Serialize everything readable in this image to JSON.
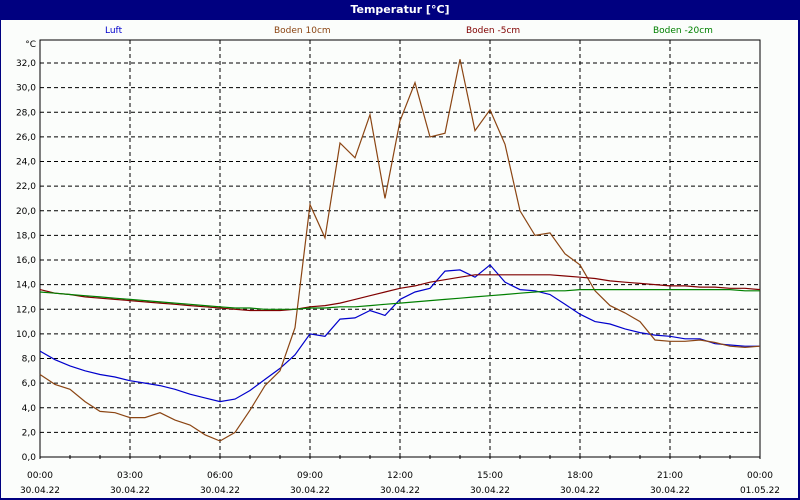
{
  "window": {
    "title": "Temperatur [°C]"
  },
  "chart_data": {
    "type": "line",
    "title": "Temperatur [°C]",
    "ylabel": "°C",
    "xlabel": "",
    "ylim": [
      0,
      33
    ],
    "grid": true,
    "legend_position": "top",
    "y_ticks": [
      "0,0",
      "2,0",
      "4,0",
      "6,0",
      "8,0",
      "10,0",
      "12,0",
      "14,0",
      "16,0",
      "18,0",
      "20,0",
      "22,0",
      "24,0",
      "26,0",
      "28,0",
      "30,0",
      "32,0"
    ],
    "x_ticks": [
      {
        "time": "00:00",
        "date": "30.04.22"
      },
      {
        "time": "03:00",
        "date": "30.04.22"
      },
      {
        "time": "06:00",
        "date": "30.04.22"
      },
      {
        "time": "09:00",
        "date": "30.04.22"
      },
      {
        "time": "12:00",
        "date": "30.04.22"
      },
      {
        "time": "15:00",
        "date": "30.04.22"
      },
      {
        "time": "18:00",
        "date": "30.04.22"
      },
      {
        "time": "21:00",
        "date": "30.04.22"
      },
      {
        "time": "00:00",
        "date": "01.05.22"
      }
    ],
    "x_hours": [
      0,
      0.5,
      1,
      1.5,
      2,
      2.5,
      3,
      3.5,
      4,
      4.5,
      5,
      5.5,
      6,
      6.5,
      7,
      7.5,
      8,
      8.5,
      9,
      9.5,
      10,
      10.5,
      11,
      11.5,
      12,
      12.5,
      13,
      13.5,
      14,
      14.5,
      15,
      15.5,
      16,
      16.5,
      17,
      17.5,
      18,
      18.5,
      19,
      19.5,
      20,
      20.5,
      21,
      21.5,
      22,
      22.5,
      23,
      23.5,
      24
    ],
    "series": [
      {
        "name": "Luft",
        "color": "#0000cc",
        "values": [
          8.6,
          7.9,
          7.4,
          7.0,
          6.7,
          6.5,
          6.2,
          6.0,
          5.8,
          5.5,
          5.1,
          4.8,
          4.5,
          4.7,
          5.4,
          6.3,
          7.2,
          8.3,
          10.0,
          9.8,
          11.2,
          11.3,
          11.9,
          11.5,
          12.8,
          13.4,
          13.7,
          15.1,
          15.2,
          14.6,
          15.6,
          14.2,
          13.6,
          13.5,
          13.2,
          12.4,
          11.6,
          11.0,
          10.8,
          10.4,
          10.1,
          9.9,
          9.8,
          9.6,
          9.6,
          9.2,
          9.1,
          9.0,
          9.0
        ]
      },
      {
        "name": "Boden 10cm",
        "color": "#8b4513",
        "values": [
          6.7,
          5.9,
          5.5,
          4.5,
          3.7,
          3.6,
          3.2,
          3.2,
          3.6,
          3.0,
          2.6,
          1.8,
          1.3,
          2.0,
          3.8,
          5.8,
          7.0,
          10.5,
          20.5,
          17.8,
          25.5,
          24.3,
          27.8,
          21.0,
          27.3,
          30.4,
          26.0,
          26.3,
          32.3,
          26.5,
          28.2,
          25.4,
          20.0,
          18.0,
          18.2,
          16.5,
          15.6,
          13.5,
          12.3,
          11.7,
          11.0,
          9.5,
          9.4,
          9.4,
          9.5,
          9.3,
          9.0,
          8.9,
          9.0
        ]
      },
      {
        "name": "Boden -5cm",
        "color": "#800000",
        "values": [
          13.6,
          13.3,
          13.2,
          13.0,
          12.9,
          12.8,
          12.7,
          12.6,
          12.5,
          12.4,
          12.3,
          12.2,
          12.1,
          12.0,
          11.9,
          11.9,
          11.9,
          12.0,
          12.2,
          12.3,
          12.5,
          12.8,
          13.1,
          13.4,
          13.7,
          13.9,
          14.2,
          14.4,
          14.6,
          14.8,
          14.8,
          14.8,
          14.8,
          14.8,
          14.8,
          14.7,
          14.6,
          14.5,
          14.3,
          14.2,
          14.1,
          14.0,
          13.9,
          13.9,
          13.8,
          13.8,
          13.7,
          13.7,
          13.6
        ]
      },
      {
        "name": "Boden -20cm",
        "color": "#008000",
        "values": [
          13.4,
          13.3,
          13.2,
          13.1,
          13.0,
          12.9,
          12.8,
          12.7,
          12.6,
          12.5,
          12.4,
          12.3,
          12.2,
          12.1,
          12.1,
          12.0,
          12.0,
          12.0,
          12.1,
          12.1,
          12.2,
          12.2,
          12.3,
          12.4,
          12.5,
          12.6,
          12.7,
          12.8,
          12.9,
          13.0,
          13.1,
          13.2,
          13.3,
          13.4,
          13.5,
          13.5,
          13.6,
          13.6,
          13.6,
          13.6,
          13.6,
          13.6,
          13.6,
          13.6,
          13.6,
          13.6,
          13.6,
          13.5,
          13.5
        ]
      }
    ]
  }
}
